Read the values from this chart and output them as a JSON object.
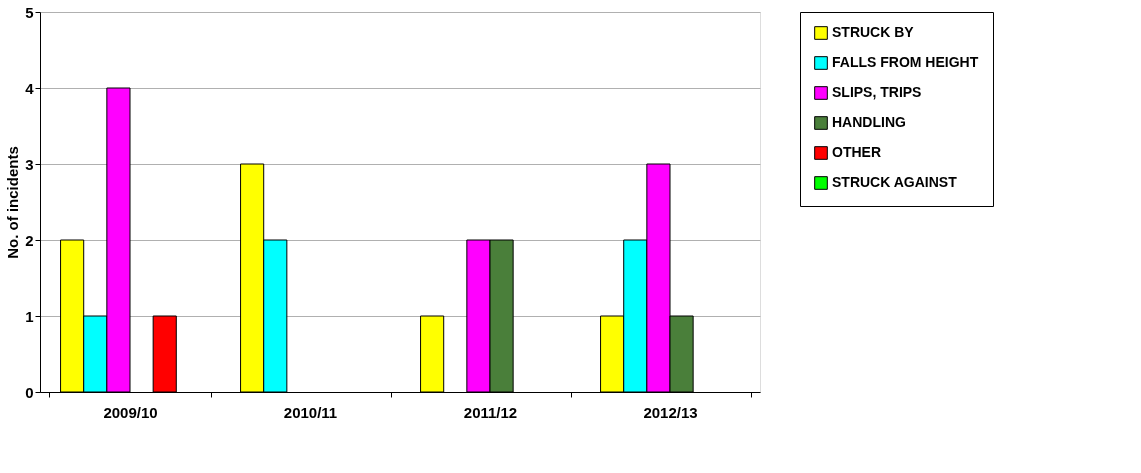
{
  "chart_data": {
    "type": "bar",
    "ylabel": "No. of incidents",
    "categories": [
      "2009/10",
      "2010/11",
      "2011/12",
      "2012/13"
    ],
    "series": [
      {
        "name": "STRUCK BY",
        "color": "#ffff00",
        "values": [
          2,
          3,
          1,
          1
        ]
      },
      {
        "name": "FALLS FROM HEIGHT",
        "color": "#00ffff",
        "values": [
          1,
          2,
          0,
          2
        ]
      },
      {
        "name": "SLIPS, TRIPS",
        "color": "#ff00ff",
        "values": [
          4,
          0,
          2,
          3
        ]
      },
      {
        "name": "HANDLING",
        "color": "#4a7f3a",
        "values": [
          0,
          0,
          2,
          1
        ]
      },
      {
        "name": "OTHER",
        "color": "#ff0000",
        "values": [
          1,
          0,
          0,
          0
        ]
      },
      {
        "name": "STRUCK AGAINST",
        "color": "#00ff00",
        "values": [
          0,
          0,
          0,
          0
        ]
      }
    ],
    "ylim": [
      0,
      5
    ],
    "yticks": [
      0,
      1,
      2,
      3,
      4,
      5
    ],
    "grid": "y",
    "legend": "right"
  }
}
